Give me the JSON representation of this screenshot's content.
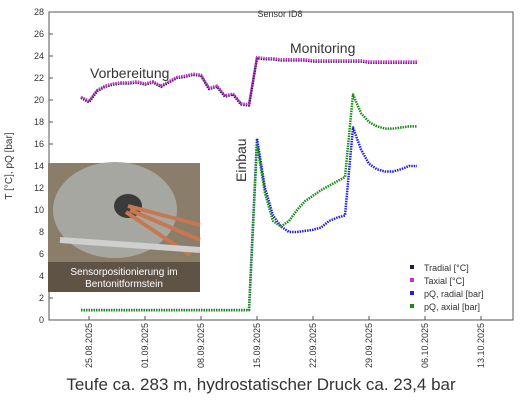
{
  "chart_data": {
    "type": "line",
    "title": "Sensor ID8",
    "y_label": "T [°C], pQ [bar]",
    "caption": "Teufe ca. 283 m, hydrostatischer Druck ca. 23,4 bar",
    "annotations": [
      "Vorbereitung",
      "Monitoring",
      "Einbau"
    ],
    "inset_caption": "Sensorpositionierung im Bentonitformstein",
    "x": [
      "2025-08-24",
      "2025-08-25",
      "2025-08-26",
      "2025-08-27",
      "2025-08-28",
      "2025-08-29",
      "2025-08-30",
      "2025-08-31",
      "2025-09-01",
      "2025-09-02",
      "2025-09-03",
      "2025-09-04",
      "2025-09-05",
      "2025-09-06",
      "2025-09-07",
      "2025-09-08",
      "2025-09-09",
      "2025-09-10",
      "2025-09-11",
      "2025-09-12",
      "2025-09-13",
      "2025-09-14",
      "2025-09-15",
      "2025-09-16",
      "2025-09-17",
      "2025-09-18",
      "2025-09-19",
      "2025-09-20",
      "2025-09-21",
      "2025-09-22",
      "2025-09-23",
      "2025-09-24",
      "2025-09-25",
      "2025-09-26",
      "2025-09-27",
      "2025-09-28",
      "2025-09-29",
      "2025-09-30",
      "2025-10-01",
      "2025-10-02",
      "2025-10-03",
      "2025-10-04",
      "2025-10-05"
    ],
    "series": [
      {
        "name": "Tradial [°C]",
        "color": "#1c1c50",
        "values": [
          20.2,
          19.8,
          20.8,
          21.2,
          21.4,
          21.5,
          21.5,
          21.6,
          21.4,
          21.6,
          21.2,
          21.6,
          22.0,
          22.1,
          22.3,
          22.2,
          21.0,
          21.2,
          20.3,
          20.5,
          19.6,
          19.5,
          23.8,
          23.7,
          23.7,
          23.6,
          23.6,
          23.6,
          23.6,
          23.5,
          23.5,
          23.5,
          23.5,
          23.5,
          23.5,
          23.5,
          23.4,
          23.4,
          23.4,
          23.4,
          23.4,
          23.4,
          23.4
        ]
      },
      {
        "name": "Taxial [°C]",
        "color": "#cc33cc",
        "values": [
          20.3,
          19.9,
          20.9,
          21.3,
          21.5,
          21.6,
          21.6,
          21.7,
          21.5,
          21.7,
          21.3,
          21.7,
          22.1,
          22.2,
          22.4,
          22.3,
          21.1,
          21.3,
          20.4,
          20.6,
          19.7,
          19.6,
          23.9,
          23.8,
          23.8,
          23.7,
          23.7,
          23.7,
          23.7,
          23.6,
          23.6,
          23.6,
          23.6,
          23.6,
          23.6,
          23.6,
          23.5,
          23.5,
          23.5,
          23.5,
          23.5,
          23.5,
          23.5
        ]
      },
      {
        "name": "pQ, radial [bar]",
        "color": "#1f1fdd",
        "values": [
          0.9,
          0.9,
          0.9,
          0.9,
          0.9,
          0.9,
          0.9,
          0.9,
          0.9,
          0.9,
          0.9,
          0.9,
          0.9,
          0.9,
          0.9,
          0.9,
          0.9,
          0.9,
          0.9,
          0.9,
          0.9,
          0.9,
          16.5,
          12.0,
          9.5,
          8.5,
          8.0,
          8.0,
          8.1,
          8.2,
          8.4,
          9.0,
          9.3,
          9.5,
          17.5,
          15.5,
          14.2,
          13.7,
          13.5,
          13.5,
          13.7,
          14.0,
          14.0
        ]
      },
      {
        "name": "pQ, axial [bar]",
        "color": "#1a8a1a",
        "values": [
          0.9,
          0.9,
          0.9,
          0.9,
          0.9,
          0.9,
          0.9,
          0.9,
          0.9,
          0.9,
          0.9,
          0.9,
          0.9,
          0.9,
          0.9,
          0.9,
          0.9,
          0.9,
          0.9,
          0.9,
          0.9,
          0.9,
          16.0,
          11.5,
          9.0,
          8.5,
          9.0,
          10.0,
          10.8,
          11.3,
          11.8,
          12.2,
          12.6,
          13.0,
          20.5,
          18.8,
          18.0,
          17.6,
          17.4,
          17.4,
          17.5,
          17.6,
          17.6
        ]
      }
    ],
    "xlim": [
      "2025-08-20",
      "2025-10-17"
    ],
    "xticks": [
      {
        "value": "2025-08-25",
        "label": "25.08.2025"
      },
      {
        "value": "2025-09-01",
        "label": "01.09.2025"
      },
      {
        "value": "2025-09-08",
        "label": "08.09.2025"
      },
      {
        "value": "2025-09-15",
        "label": "15.09.2025"
      },
      {
        "value": "2025-09-22",
        "label": "22.09.2025"
      },
      {
        "value": "2025-09-29",
        "label": "29.09.2025"
      },
      {
        "value": "2025-10-06",
        "label": "06.10.2025"
      },
      {
        "value": "2025-10-13",
        "label": "13.10.2025"
      }
    ],
    "ylim": [
      0,
      28
    ],
    "yticks": [
      0,
      2,
      4,
      6,
      8,
      10,
      12,
      14,
      16,
      18,
      20,
      22,
      24,
      26,
      28
    ]
  }
}
